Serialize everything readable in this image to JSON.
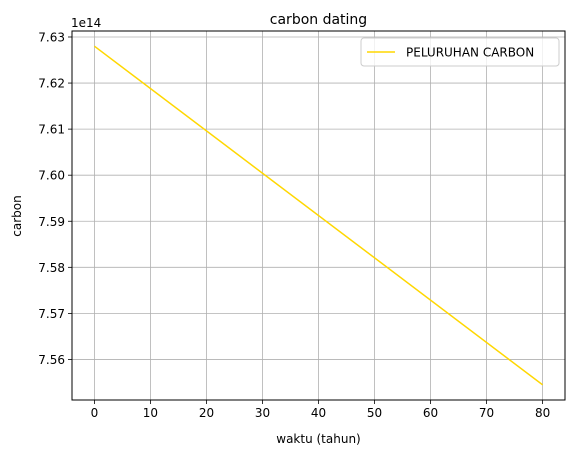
{
  "chart_data": {
    "type": "line",
    "title": "carbon dating",
    "xlabel": "waktu (tahun)",
    "ylabel": "carbon",
    "offset_text": "1e14",
    "xlim": [
      -4,
      84
    ],
    "ylim": [
      7.5512,
      7.6313
    ],
    "xticks": [
      0,
      10,
      20,
      30,
      40,
      50,
      60,
      70,
      80
    ],
    "xtick_labels": [
      "0",
      "10",
      "20",
      "30",
      "40",
      "50",
      "60",
      "70",
      "80"
    ],
    "yticks": [
      7.56,
      7.57,
      7.58,
      7.59,
      7.6,
      7.61,
      7.62,
      7.63
    ],
    "ytick_labels": [
      "7.56",
      "7.57",
      "7.58",
      "7.59",
      "7.60",
      "7.61",
      "7.62",
      "7.63"
    ],
    "grid": true,
    "legend_position": "top-right",
    "series": [
      {
        "name": "PELURUHAN CARBON",
        "color": "#FFD700",
        "x": [
          0,
          80
        ],
        "y": [
          7.628,
          7.5545
        ]
      }
    ]
  }
}
